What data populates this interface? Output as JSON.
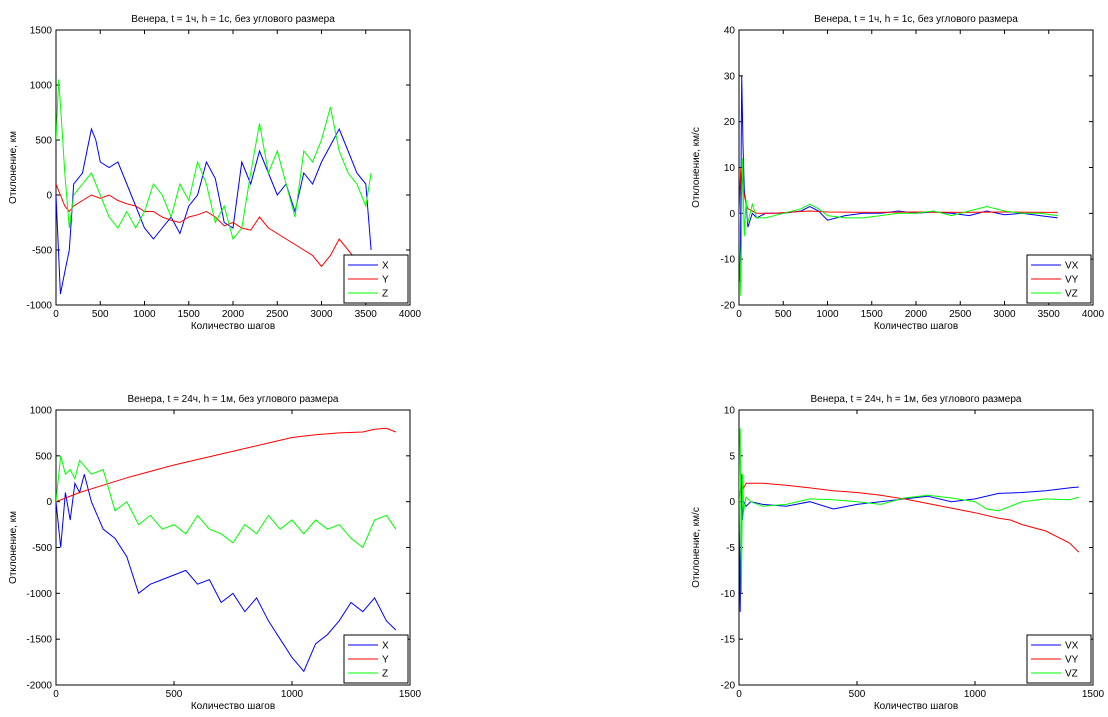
{
  "chart_data": [
    {
      "type": "line",
      "title": "Венера, t = 1ч, h = 1с, без углового размера",
      "xlabel": "Количество шагов",
      "ylabel": "Отклонение, км",
      "xlim": [
        0,
        4000
      ],
      "ylim": [
        -1000,
        1500
      ],
      "xticks": [
        "0",
        "500",
        "1000",
        "1500",
        "2000",
        "2500",
        "3000",
        "3500",
        "4000"
      ],
      "yticks": [
        "-1000",
        "-500",
        "0",
        "500",
        "1000",
        "1500"
      ],
      "legend_position": "bottom-right",
      "series": [
        {
          "name": "X",
          "color": "#0000ff",
          "x": [
            0,
            50,
            100,
            150,
            200,
            300,
            400,
            450,
            500,
            600,
            700,
            800,
            900,
            1000,
            1100,
            1200,
            1300,
            1400,
            1500,
            1600,
            1700,
            1800,
            1900,
            2000,
            2100,
            2200,
            2300,
            2400,
            2500,
            2600,
            2700,
            2800,
            2900,
            3000,
            3100,
            3200,
            3300,
            3400,
            3500,
            3560
          ],
          "y": [
            0,
            -900,
            -700,
            -500,
            100,
            200,
            600,
            500,
            300,
            250,
            300,
            100,
            -100,
            -300,
            -400,
            -300,
            -200,
            -350,
            -100,
            0,
            300,
            150,
            -250,
            -300,
            300,
            100,
            400,
            200,
            0,
            100,
            -150,
            200,
            100,
            300,
            450,
            600,
            400,
            200,
            100,
            -500
          ]
        },
        {
          "name": "Y",
          "color": "#ff0000",
          "x": [
            0,
            50,
            100,
            150,
            200,
            300,
            400,
            500,
            600,
            700,
            800,
            900,
            1000,
            1100,
            1200,
            1300,
            1400,
            1500,
            1600,
            1700,
            1800,
            1900,
            2000,
            2100,
            2200,
            2300,
            2400,
            2500,
            2600,
            2700,
            2800,
            2900,
            3000,
            3100,
            3200,
            3300,
            3400,
            3500,
            3560
          ],
          "y": [
            100,
            0,
            -100,
            -150,
            -100,
            -50,
            0,
            -30,
            0,
            -50,
            -80,
            -100,
            -150,
            -150,
            -200,
            -230,
            -250,
            -200,
            -180,
            -150,
            -200,
            -280,
            -250,
            -300,
            -320,
            -200,
            -300,
            -350,
            -400,
            -450,
            -500,
            -550,
            -650,
            -550,
            -400,
            -500,
            -600,
            -550,
            -550
          ]
        },
        {
          "name": "Z",
          "color": "#00ff00",
          "x": [
            0,
            30,
            60,
            100,
            150,
            200,
            300,
            400,
            500,
            600,
            700,
            800,
            900,
            1000,
            1100,
            1200,
            1300,
            1400,
            1500,
            1600,
            1700,
            1800,
            1900,
            2000,
            2100,
            2200,
            2300,
            2400,
            2500,
            2600,
            2700,
            2800,
            2900,
            3000,
            3100,
            3200,
            3300,
            3400,
            3500,
            3560
          ],
          "y": [
            500,
            1050,
            700,
            200,
            -300,
            0,
            100,
            200,
            0,
            -200,
            -300,
            -150,
            -300,
            -150,
            100,
            0,
            -200,
            100,
            -50,
            300,
            100,
            -250,
            -100,
            -400,
            -300,
            200,
            650,
            200,
            400,
            100,
            -200,
            400,
            300,
            500,
            800,
            400,
            200,
            100,
            -100,
            200
          ]
        }
      ]
    },
    {
      "type": "line",
      "title": "Венера, t = 1ч, h = 1с, без углового размера",
      "xlabel": "Количество шагов",
      "ylabel": "Отклонение, км/с",
      "xlim": [
        0,
        4000
      ],
      "ylim": [
        -20,
        40
      ],
      "xticks": [
        "0",
        "500",
        "1000",
        "1500",
        "2000",
        "2500",
        "3000",
        "3500",
        "4000"
      ],
      "yticks": [
        "-20",
        "-10",
        "0",
        "10",
        "20",
        "30",
        "40"
      ],
      "legend_position": "bottom-right",
      "series": [
        {
          "name": "VX",
          "color": "#0000ff",
          "x": [
            0,
            15,
            30,
            45,
            60,
            80,
            100,
            150,
            200,
            300,
            500,
            700,
            800,
            900,
            1000,
            1200,
            1400,
            1600,
            1800,
            2000,
            2200,
            2400,
            2600,
            2800,
            3000,
            3200,
            3400,
            3600
          ],
          "y": [
            0,
            -15,
            30,
            15,
            5,
            2,
            -3,
            0,
            -1,
            0,
            0,
            0.5,
            1.5,
            0.5,
            -1.5,
            -0.5,
            0,
            0,
            0.5,
            0,
            0.3,
            0,
            -0.5,
            0.5,
            -0.3,
            0,
            -0.5,
            -1
          ]
        },
        {
          "name": "VY",
          "color": "#ff0000",
          "x": [
            0,
            20,
            40,
            60,
            80,
            100,
            150,
            200,
            400,
            600,
            800,
            1000,
            1500,
            2000,
            2500,
            3000,
            3500,
            3600
          ],
          "y": [
            0,
            10,
            6,
            4,
            2,
            1,
            0.5,
            0,
            0,
            0.3,
            0.5,
            0.3,
            0.2,
            0.3,
            0.2,
            0.3,
            0.2,
            0.2
          ]
        },
        {
          "name": "VZ",
          "color": "#00ff00",
          "x": [
            0,
            20,
            40,
            60,
            80,
            100,
            150,
            200,
            300,
            500,
            700,
            800,
            900,
            1000,
            1200,
            1400,
            1600,
            1800,
            2000,
            2200,
            2400,
            2600,
            2800,
            3000,
            3200,
            3400,
            3600
          ],
          "y": [
            0,
            -18,
            12,
            -5,
            3,
            -2,
            2,
            -1,
            -1,
            0,
            1,
            2,
            1,
            -0.5,
            -1,
            -1,
            -0.5,
            0,
            0,
            0.5,
            -0.5,
            0.5,
            1.5,
            0.5,
            0,
            0,
            -0.5
          ]
        }
      ]
    },
    {
      "type": "line",
      "title": "Венера, t = 24ч, h = 1м, без углового размера",
      "xlabel": "Количество шагов",
      "ylabel": "Отклонение, км",
      "xlim": [
        0,
        1500
      ],
      "ylim": [
        -2000,
        1000
      ],
      "xticks": [
        "0",
        "500",
        "1000",
        "1500"
      ],
      "yticks": [
        "-2000",
        "-1500",
        "-1000",
        "-500",
        "0",
        "500",
        "1000"
      ],
      "legend_position": "bottom-right",
      "series": [
        {
          "name": "X",
          "color": "#0000ff",
          "x": [
            0,
            20,
            40,
            60,
            80,
            100,
            120,
            150,
            200,
            250,
            300,
            350,
            400,
            450,
            500,
            550,
            600,
            650,
            700,
            750,
            800,
            850,
            900,
            950,
            1000,
            1050,
            1100,
            1150,
            1200,
            1250,
            1300,
            1350,
            1400,
            1440
          ],
          "y": [
            0,
            -500,
            100,
            -200,
            200,
            100,
            300,
            0,
            -300,
            -400,
            -600,
            -1000,
            -900,
            -850,
            -800,
            -750,
            -900,
            -850,
            -1100,
            -1000,
            -1200,
            -1050,
            -1300,
            -1500,
            -1700,
            -1850,
            -1550,
            -1450,
            -1300,
            -1100,
            -1200,
            -1050,
            -1300,
            -1400
          ]
        },
        {
          "name": "Y",
          "color": "#ff0000",
          "x": [
            0,
            100,
            200,
            300,
            400,
            500,
            600,
            700,
            800,
            900,
            1000,
            1100,
            1200,
            1300,
            1350,
            1400,
            1440
          ],
          "y": [
            0,
            100,
            180,
            260,
            330,
            400,
            460,
            520,
            580,
            640,
            700,
            730,
            750,
            760,
            790,
            800,
            760
          ]
        },
        {
          "name": "Z",
          "color": "#00ff00",
          "x": [
            0,
            20,
            40,
            60,
            80,
            100,
            150,
            200,
            250,
            300,
            350,
            400,
            450,
            500,
            550,
            600,
            650,
            700,
            750,
            800,
            850,
            900,
            950,
            1000,
            1050,
            1100,
            1150,
            1200,
            1250,
            1300,
            1350,
            1400,
            1440
          ],
          "y": [
            0,
            500,
            300,
            350,
            250,
            450,
            300,
            350,
            -100,
            0,
            -250,
            -150,
            -300,
            -250,
            -350,
            -150,
            -300,
            -350,
            -450,
            -250,
            -350,
            -150,
            -300,
            -200,
            -350,
            -200,
            -300,
            -250,
            -400,
            -500,
            -200,
            -150,
            -300
          ]
        }
      ]
    },
    {
      "type": "line",
      "title": "Венера, t = 24ч, h = 1м, без углового размера",
      "xlabel": "Количество шагов",
      "ylabel": "Отклонение, км/с",
      "xlim": [
        0,
        1500
      ],
      "ylim": [
        -20,
        10
      ],
      "xticks": [
        "0",
        "500",
        "1000",
        "1500"
      ],
      "yticks": [
        "-20",
        "-15",
        "-10",
        "-5",
        "0",
        "5",
        "10"
      ],
      "legend_position": "bottom-right",
      "series": [
        {
          "name": "VX",
          "color": "#0000ff",
          "x": [
            0,
            5,
            10,
            15,
            20,
            30,
            50,
            100,
            200,
            300,
            400,
            500,
            600,
            700,
            800,
            900,
            1000,
            1100,
            1200,
            1300,
            1400,
            1440
          ],
          "y": [
            0,
            -12,
            3,
            -2,
            0,
            -0.5,
            0,
            -0.3,
            -0.5,
            0,
            -0.8,
            -0.3,
            0,
            0.3,
            0.6,
            0,
            0.3,
            0.9,
            1.0,
            1.2,
            1.5,
            1.6
          ]
        },
        {
          "name": "VY",
          "color": "#ff0000",
          "x": [
            0,
            10,
            20,
            30,
            100,
            200,
            300,
            400,
            500,
            600,
            700,
            800,
            900,
            1000,
            1100,
            1150,
            1200,
            1300,
            1400,
            1440
          ],
          "y": [
            0,
            2.5,
            1.5,
            2,
            2,
            1.8,
            1.5,
            1.2,
            1,
            0.7,
            0.3,
            -0.2,
            -0.7,
            -1.2,
            -1.8,
            -2,
            -2.5,
            -3.2,
            -4.5,
            -5.5
          ]
        },
        {
          "name": "VZ",
          "color": "#00ff00",
          "x": [
            0,
            5,
            10,
            15,
            20,
            30,
            50,
            100,
            200,
            300,
            400,
            500,
            600,
            700,
            800,
            900,
            1000,
            1050,
            1100,
            1200,
            1300,
            1400,
            1440
          ],
          "y": [
            0,
            8,
            -10,
            3,
            -1,
            0.5,
            0,
            -0.5,
            -0.3,
            0.3,
            0.2,
            0,
            -0.3,
            0.4,
            0.7,
            0.4,
            0,
            -0.8,
            -1,
            0,
            0.3,
            0.2,
            0.5
          ]
        }
      ]
    }
  ]
}
